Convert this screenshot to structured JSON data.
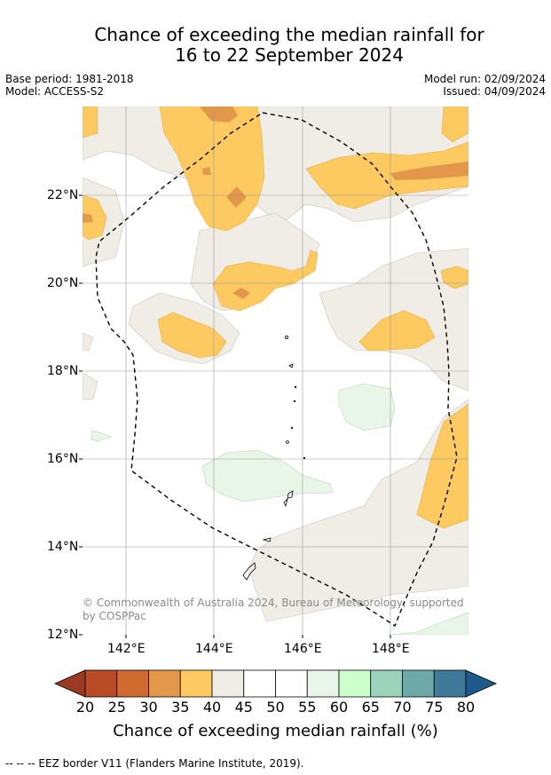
{
  "title_line1": "Chance of exceeding the median rainfall for",
  "title_line2": "16 to 22 September 2024",
  "base_period": "Base period: 1981-2018",
  "model": "Model: ACCESS-S2",
  "model_run": "Model run: 02/09/2024",
  "issued": "Issued: 04/09/2024",
  "lat_ticks": [
    "22°N",
    "20°N",
    "18°N",
    "16°N",
    "14°N",
    "12°N"
  ],
  "lon_ticks": [
    "142°E",
    "144°E",
    "146°E",
    "148°E"
  ],
  "colorbar": {
    "labels": [
      "20",
      "25",
      "30",
      "35",
      "40",
      "45",
      "50",
      "55",
      "60",
      "65",
      "70",
      "75",
      "80"
    ],
    "colors": [
      "#9b3a22",
      "#b84a25",
      "#cf6a30",
      "#e2974a",
      "#fdca62",
      "#f0ece6",
      "#ffffff",
      "#ffffff",
      "#e9f5e9",
      "#ccffcc",
      "#9dd3bb",
      "#6fa8a8",
      "#3f7b99",
      "#1e5a8c"
    ],
    "title": "Chance of exceeding median rainfall (%)"
  },
  "copyright_line1": "© Commonwealth of Australia 2024, Bureau of Meteorology, supported",
  "copyright_line2": "by COSPPac",
  "footnote": "--  --  -- EEZ border V11 (Flanders Marine Institute, 2019)."
}
